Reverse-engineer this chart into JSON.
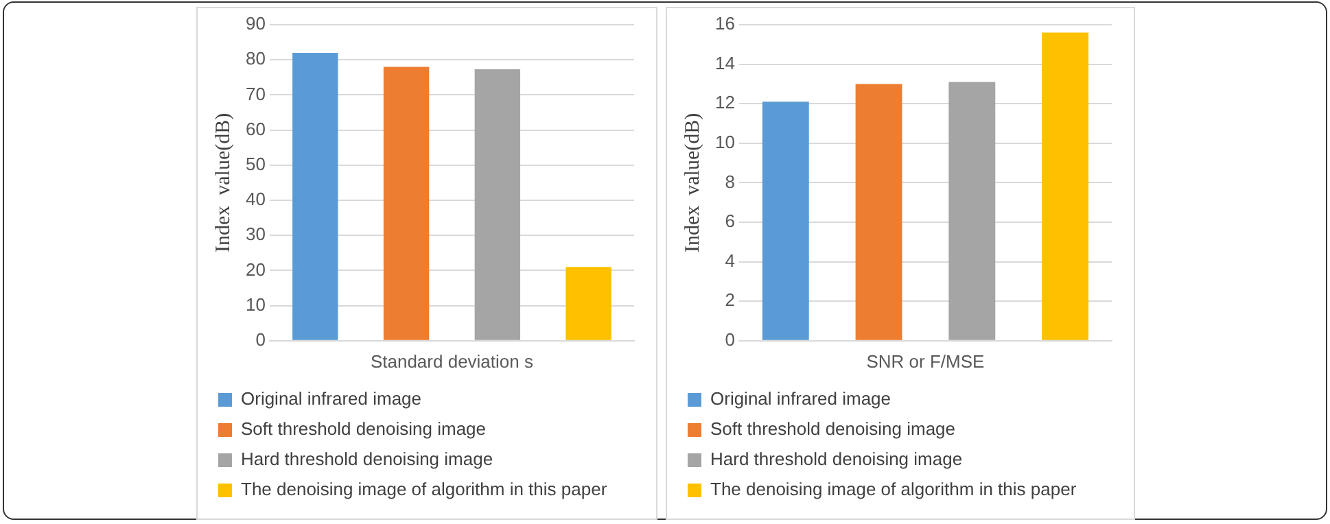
{
  "chart_data": [
    {
      "type": "bar",
      "categories": [
        null,
        null,
        null,
        null
      ],
      "xlabel": "Standard deviation s",
      "ylabel": "Index  value(dB)",
      "ylim": [
        0,
        90
      ],
      "yticks": [
        0,
        10,
        20,
        30,
        40,
        50,
        60,
        70,
        80,
        90
      ],
      "grid": "y",
      "legend": "bottom",
      "series": [
        {
          "name": "Original infrared image",
          "color": "#5b9bd5",
          "values": [
            82,
            null,
            null,
            null
          ]
        },
        {
          "name": "Soft threshold denoising image",
          "color": "#ed7d31",
          "values": [
            null,
            78,
            null,
            null
          ]
        },
        {
          "name": "Hard threshold denoising image",
          "color": "#a5a5a5",
          "values": [
            null,
            null,
            77.3,
            null
          ]
        },
        {
          "name": "The denoising image of algorithm in this paper",
          "color": "#ffc000",
          "values": [
            null,
            null,
            null,
            21
          ]
        }
      ]
    },
    {
      "type": "bar",
      "categories": [
        null,
        null,
        null,
        null
      ],
      "xlabel": "SNR or F/MSE",
      "ylabel": "Index  value(dB)",
      "ylim": [
        0,
        16
      ],
      "yticks": [
        0,
        2,
        4,
        6,
        8,
        10,
        12,
        14,
        16
      ],
      "grid": "y",
      "legend": "bottom",
      "series": [
        {
          "name": "Original infrared image",
          "color": "#5b9bd5",
          "values": [
            12.1,
            null,
            null,
            null
          ]
        },
        {
          "name": "Soft threshold denoising image",
          "color": "#ed7d31",
          "values": [
            null,
            13,
            null,
            null
          ]
        },
        {
          "name": "Hard threshold denoising image",
          "color": "#a5a5a5",
          "values": [
            null,
            null,
            13.1,
            null
          ]
        },
        {
          "name": "The denoising image of algorithm in this paper",
          "color": "#ffc000",
          "values": [
            null,
            null,
            null,
            15.6
          ]
        }
      ]
    }
  ]
}
